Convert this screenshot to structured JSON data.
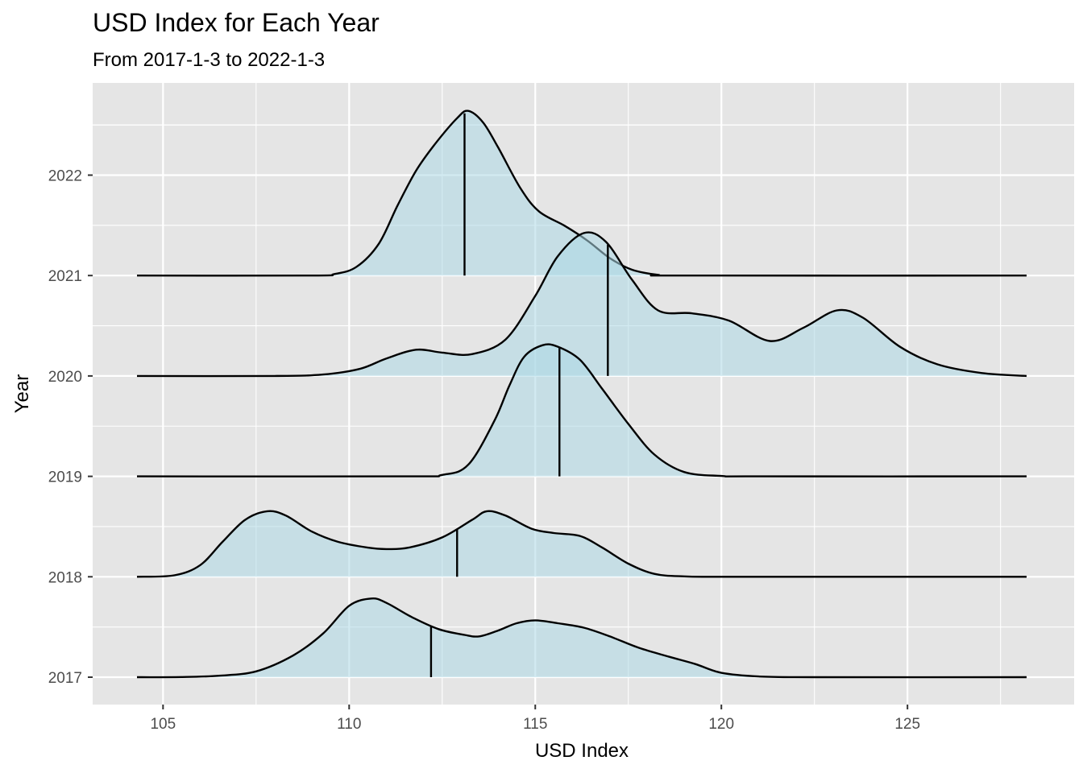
{
  "chart_data": {
    "type": "ridgeline",
    "title": "USD Index for Each Year",
    "subtitle": "From 2017-1-3 to 2022-1-3",
    "xlabel": "USD Index",
    "ylabel": "Year",
    "xlim": [
      103.1,
      129.2
    ],
    "x_ticks": [
      105,
      110,
      115,
      120,
      125
    ],
    "y_ticks": [
      "2017",
      "2018",
      "2019",
      "2020",
      "2021",
      "2022"
    ],
    "x_range": [
      104.3,
      128.2
    ],
    "fill_color": "#add8e6",
    "line_color": "#000000",
    "panel_bg": "#e5e5e5",
    "grid_color": "#ffffff",
    "grid": true,
    "legend": "none",
    "series": [
      {
        "name": "2017",
        "median": 112.2,
        "density": [
          [
            104.3,
            0
          ],
          [
            105.5,
            0.001
          ],
          [
            106.5,
            0.01
          ],
          [
            107.5,
            0.04
          ],
          [
            108.5,
            0.15
          ],
          [
            109.3,
            0.3
          ],
          [
            110.0,
            0.49
          ],
          [
            110.6,
            0.54
          ],
          [
            111.0,
            0.51
          ],
          [
            111.7,
            0.41
          ],
          [
            112.4,
            0.33
          ],
          [
            113.1,
            0.29
          ],
          [
            113.5,
            0.28
          ],
          [
            114.0,
            0.32
          ],
          [
            114.5,
            0.37
          ],
          [
            115.0,
            0.39
          ],
          [
            115.6,
            0.37
          ],
          [
            116.3,
            0.34
          ],
          [
            117.0,
            0.28
          ],
          [
            117.8,
            0.2
          ],
          [
            118.6,
            0.14
          ],
          [
            119.3,
            0.09
          ],
          [
            120.0,
            0.03
          ],
          [
            121.0,
            0.005
          ],
          [
            122.5,
            0
          ],
          [
            128.2,
            0
          ]
        ]
      },
      {
        "name": "2018",
        "median": 112.9,
        "density": [
          [
            104.3,
            0
          ],
          [
            105.3,
            0.01
          ],
          [
            106.0,
            0.08
          ],
          [
            106.6,
            0.24
          ],
          [
            107.2,
            0.39
          ],
          [
            107.8,
            0.45
          ],
          [
            108.3,
            0.42
          ],
          [
            109.0,
            0.31
          ],
          [
            109.7,
            0.24
          ],
          [
            110.5,
            0.2
          ],
          [
            111.0,
            0.19
          ],
          [
            111.6,
            0.2
          ],
          [
            112.5,
            0.27
          ],
          [
            113.3,
            0.39
          ],
          [
            113.7,
            0.45
          ],
          [
            114.2,
            0.42
          ],
          [
            114.9,
            0.33
          ],
          [
            115.5,
            0.3
          ],
          [
            116.2,
            0.28
          ],
          [
            116.8,
            0.2
          ],
          [
            117.5,
            0.09
          ],
          [
            118.2,
            0.02
          ],
          [
            119.0,
            0.003
          ],
          [
            120.5,
            0
          ],
          [
            128.2,
            0
          ]
        ]
      },
      {
        "name": "2019",
        "median": 115.65,
        "density": [
          [
            104.3,
            0
          ],
          [
            111.5,
            0
          ],
          [
            112.5,
            0.01
          ],
          [
            113.2,
            0.08
          ],
          [
            113.9,
            0.38
          ],
          [
            114.3,
            0.62
          ],
          [
            114.7,
            0.82
          ],
          [
            115.2,
            0.9
          ],
          [
            115.6,
            0.89
          ],
          [
            116.2,
            0.8
          ],
          [
            116.8,
            0.6
          ],
          [
            117.5,
            0.36
          ],
          [
            118.2,
            0.15
          ],
          [
            119.0,
            0.03
          ],
          [
            120.0,
            0.003
          ],
          [
            121.0,
            0
          ],
          [
            128.2,
            0
          ]
        ]
      },
      {
        "name": "2020",
        "median": 116.95,
        "density": [
          [
            104.3,
            0
          ],
          [
            108.0,
            0
          ],
          [
            109.3,
            0.01
          ],
          [
            110.3,
            0.05
          ],
          [
            111.0,
            0.12
          ],
          [
            111.8,
            0.18
          ],
          [
            112.5,
            0.16
          ],
          [
            113.3,
            0.15
          ],
          [
            114.2,
            0.25
          ],
          [
            115.0,
            0.55
          ],
          [
            115.6,
            0.82
          ],
          [
            116.3,
            0.98
          ],
          [
            116.9,
            0.92
          ],
          [
            117.6,
            0.66
          ],
          [
            118.3,
            0.45
          ],
          [
            119.2,
            0.43
          ],
          [
            120.2,
            0.38
          ],
          [
            121.3,
            0.24
          ],
          [
            122.2,
            0.33
          ],
          [
            123.1,
            0.45
          ],
          [
            123.8,
            0.4
          ],
          [
            124.8,
            0.2
          ],
          [
            125.8,
            0.08
          ],
          [
            127.0,
            0.02
          ],
          [
            128.2,
            0
          ]
        ]
      },
      {
        "name": "2021",
        "median": 113.1,
        "density": [
          [
            104.3,
            0
          ],
          [
            109.0,
            0
          ],
          [
            109.6,
            0.01
          ],
          [
            110.2,
            0.06
          ],
          [
            110.8,
            0.22
          ],
          [
            111.3,
            0.48
          ],
          [
            111.8,
            0.72
          ],
          [
            112.3,
            0.9
          ],
          [
            112.9,
            1.08
          ],
          [
            113.2,
            1.13
          ],
          [
            113.6,
            1.05
          ],
          [
            114.0,
            0.88
          ],
          [
            114.6,
            0.6
          ],
          [
            115.1,
            0.44
          ],
          [
            115.8,
            0.34
          ],
          [
            116.4,
            0.24
          ],
          [
            117.0,
            0.12
          ],
          [
            117.6,
            0.04
          ],
          [
            118.3,
            0.005
          ],
          [
            119.0,
            0
          ],
          [
            128.2,
            0
          ]
        ]
      }
    ]
  }
}
